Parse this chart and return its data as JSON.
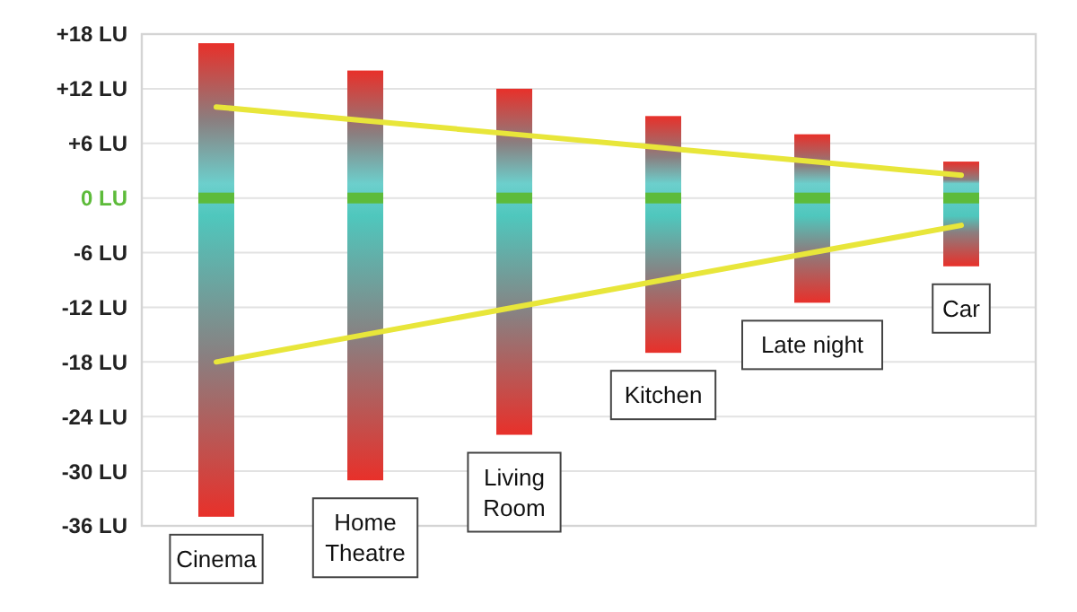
{
  "chart_data": {
    "type": "bar",
    "categories": [
      "Cinema",
      "Home Theatre",
      "Living Room",
      "Kitchen",
      "Late night",
      "Car"
    ],
    "ylim": [
      -36,
      18
    ],
    "yticks": [
      {
        "value": 18,
        "label": "+18 LU"
      },
      {
        "value": 12,
        "label": "+12 LU"
      },
      {
        "value": 6,
        "label": "+6 LU"
      },
      {
        "value": 0,
        "label": "0 LU"
      },
      {
        "value": -6,
        "label": "-6 LU"
      },
      {
        "value": -12,
        "label": "-12 LU"
      },
      {
        "value": -18,
        "label": "-18 LU"
      },
      {
        "value": -24,
        "label": "-24 LU"
      },
      {
        "value": -30,
        "label": "-30 LU"
      },
      {
        "value": -36,
        "label": "-36 LU"
      }
    ],
    "grid": "y",
    "series": [
      {
        "color": "#e8302a",
        "base": [
          -35,
          -31,
          -26,
          -17,
          -11.5,
          -7.5
        ],
        "values": [
          52,
          45,
          38,
          26,
          18.5,
          11.5
        ]
      },
      {
        "type": "scatter",
        "color": "#5dbb3a",
        "values": [
          0,
          0,
          0,
          0,
          0,
          0
        ]
      },
      {
        "type": "line",
        "color": "#e8e63a",
        "values": [
          10,
          8.5,
          7,
          5.5,
          4,
          2.5
        ]
      },
      {
        "type": "line",
        "color": "#e8e63a",
        "values": [
          -18,
          -15,
          -12,
          -9,
          -6,
          -3
        ]
      }
    ]
  }
}
